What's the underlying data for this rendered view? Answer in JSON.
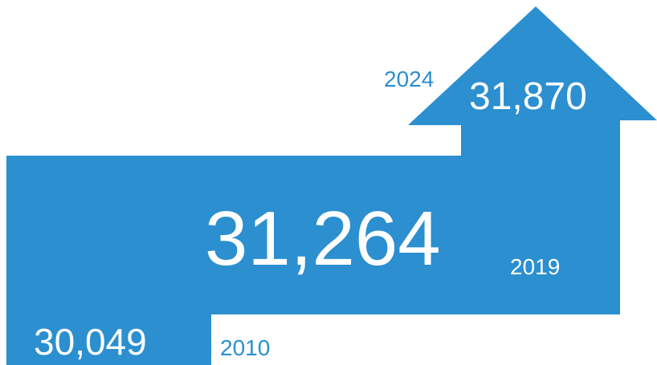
{
  "colors": {
    "accent": "#2b8fd0",
    "value_text": "#ffffff",
    "year_on_white": "#2b8fd0",
    "year_on_blue": "#ffffff"
  },
  "chart_data": {
    "type": "area",
    "x": [
      "2010",
      "2019",
      "2024"
    ],
    "values": [
      30049,
      31264,
      31870
    ],
    "labels": [
      "30,049",
      "31,264",
      "31,870"
    ],
    "title": "",
    "xlabel": "",
    "ylabel": ""
  }
}
